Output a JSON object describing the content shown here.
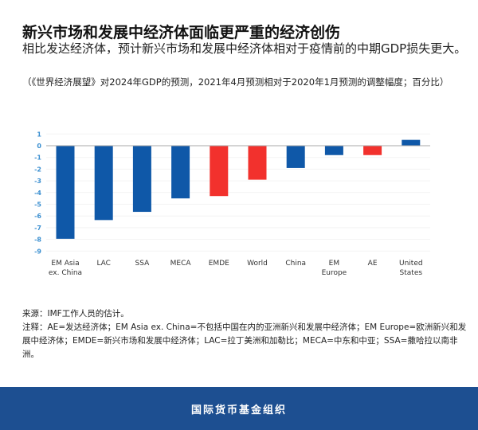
{
  "title": "新兴市场和发展中经济体面临更严重的经济创伤",
  "subtitle": "相比发达经济体，预计新兴市场和发展中经济体相对于疫情前的中期GDP损失更大。",
  "note": "（《世界经济展望》对2024年GDP的预测，2021年4月预测相对于2020年1月预测的调整幅度；百分比）",
  "source": "来源：IMF工作人员的估计。",
  "footnote": "注释：AE=发达经济体；EM Asia ex. China=不包括中国在内的亚洲新兴和发展中经济体；EM Europe=欧洲新兴和发展中经济体；EMDE=新兴市场和发展中经济体；LAC=拉丁美洲和加勒比；MECA=中东和中亚；SSA=撒哈拉以南非洲。",
  "footer": "国际货币基金组织",
  "chart_data": {
    "type": "bar",
    "categories": [
      [
        "EM Asia",
        "ex. China"
      ],
      [
        "LAC"
      ],
      [
        "SSA"
      ],
      [
        "MECA"
      ],
      [
        "EMDE"
      ],
      [
        "World"
      ],
      [
        "China"
      ],
      [
        "EM",
        "Europe"
      ],
      [
        "AE"
      ],
      [
        "United",
        "States"
      ]
    ],
    "values": [
      -7.95,
      -6.35,
      -5.65,
      -4.5,
      -4.3,
      -2.9,
      -1.9,
      -0.8,
      -0.8,
      0.5
    ],
    "colors": [
      "#0f58a8",
      "#0f58a8",
      "#0f58a8",
      "#0f58a8",
      "#f2312d",
      "#f2312d",
      "#0f58a8",
      "#0f58a8",
      "#f2312d",
      "#0f58a8"
    ],
    "yticks": [
      1,
      0,
      -1,
      -2,
      -3,
      -4,
      -5,
      -6,
      -7,
      -8,
      -9
    ],
    "ylim": [
      -9,
      1
    ],
    "grid": true,
    "tick_color": "#3b8fd0"
  }
}
